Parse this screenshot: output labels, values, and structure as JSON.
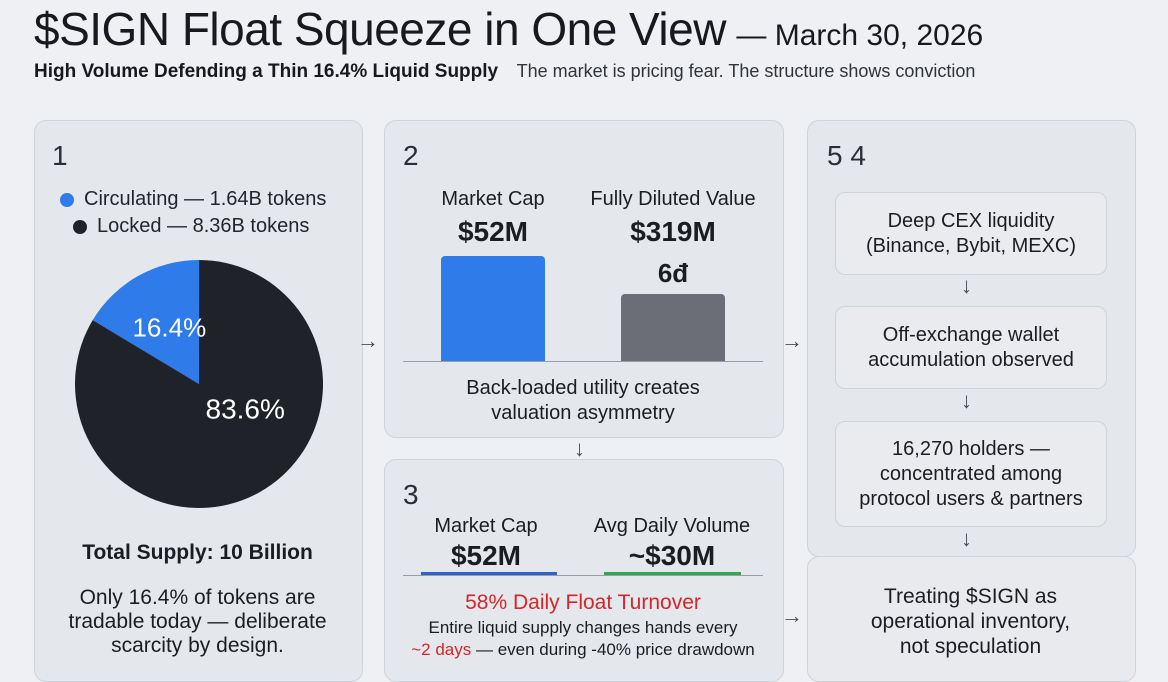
{
  "header": {
    "title": "$SIGN Float Squeeze in One View",
    "date": "— March 30, 2026",
    "subtitle": "High Volume Defending a Thin 16.4% Liquid Supply",
    "tagline": "The market is pricing fear. The structure shows conviction"
  },
  "panel1": {
    "number": "1",
    "legend": [
      {
        "label": "Circulating — 1.64B tokens",
        "color": "#2f7bea"
      },
      {
        "label": "Locked — 8.36B tokens",
        "color": "#1f2229"
      }
    ],
    "total": "Total Supply: 10 Billion",
    "note_lines": [
      "Only 16.4% of tokens are",
      "tradable today — deliberate",
      "scarcity by design."
    ]
  },
  "panel2": {
    "number": "2",
    "caption_lines": [
      "Back-loaded utility creates",
      "valuation asymmetry"
    ]
  },
  "panel3": {
    "number": "3",
    "turnover": "58% Daily Float Turnover",
    "note_line1": "Entire liquid supply changes hands every",
    "note_line2_red": "~2 days",
    "note_line2_rest": " — even during -40% price drawdown"
  },
  "panel4": {
    "number": "5 4",
    "steps": [
      {
        "lines": [
          "Deep CEX liquidity",
          "(Binance, Bybit, MEXC)"
        ]
      },
      {
        "lines": [
          "Off-exchange wallet",
          "accumulation observed"
        ]
      },
      {
        "lines": [
          "16,270 holders —",
          "concentrated among",
          "protocol users & partners"
        ]
      },
      {
        "lines": [
          "Treating $SIGN as",
          "operational inventory,",
          "not speculation"
        ]
      }
    ]
  },
  "chart_data": [
    {
      "type": "pie",
      "slices": [
        {
          "name": "Circulating",
          "value": 16.4,
          "label": "16.4%",
          "color": "#2f7bea"
        },
        {
          "name": "Locked",
          "value": 83.6,
          "label": "83.6%",
          "color": "#1f2229"
        }
      ]
    },
    {
      "type": "bar",
      "categories": [
        "Market Cap",
        "Fully Diluted Value"
      ],
      "value_labels": [
        "$52M",
        "$319M"
      ],
      "values": [
        52,
        319
      ],
      "colors": [
        "#2f7bea",
        "#6b6e76"
      ],
      "annotation": "6đ"
    },
    {
      "type": "bar",
      "categories": [
        "Market Cap",
        "Avg Daily Volume"
      ],
      "value_labels": [
        "$52M",
        "~$30M"
      ],
      "values": [
        52,
        30
      ],
      "colors": [
        "#2f62c8",
        "#2fa84f"
      ]
    }
  ]
}
